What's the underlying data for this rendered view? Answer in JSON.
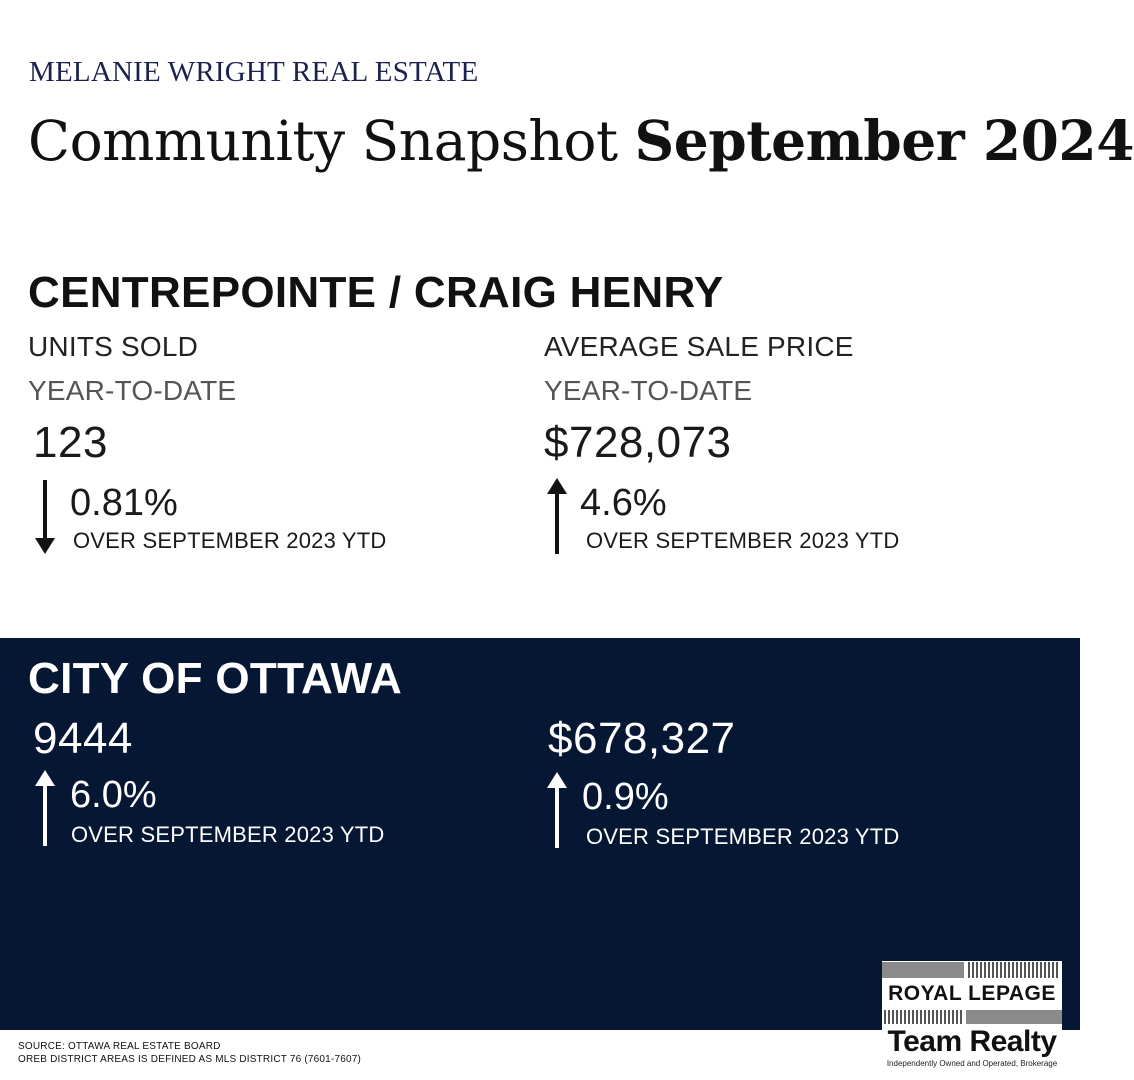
{
  "header": {
    "brand": "MELANIE WRIGHT REAL ESTATE",
    "title_regular": "Community Snapshot",
    "title_bold": "September 2024"
  },
  "community": {
    "heading": "CENTREPOINTE / CRAIG HENRY",
    "units": {
      "label": "UNITS SOLD",
      "period": "YEAR-TO-DATE",
      "value": "123",
      "change": "0.81%",
      "direction": "down",
      "comparison": "OVER SEPTEMBER 2023 YTD"
    },
    "price": {
      "label": "AVERAGE SALE PRICE",
      "period": "YEAR-TO-DATE",
      "value": "$728,073",
      "change": "4.6%",
      "direction": "up",
      "comparison": "OVER SEPTEMBER 2023 YTD"
    }
  },
  "city": {
    "heading": "CITY OF OTTAWA",
    "units": {
      "value": "9444",
      "change": "6.0%",
      "direction": "up",
      "comparison": "OVER SEPTEMBER 2023 YTD"
    },
    "price": {
      "value": "$678,327",
      "change": "0.9%",
      "direction": "up",
      "comparison": "OVER SEPTEMBER 2023 YTD"
    }
  },
  "footer": {
    "source": "SOURCE: OTTAWA REAL ESTATE BOARD",
    "note": "OREB DISTRICT AREAS IS DEFINED AS MLS DISTRICT 76 (7601-7607)"
  },
  "logo": {
    "line1": "ROYAL LEPAGE",
    "line2": "Team Realty",
    "tagline": "Independently Owned and Operated, Brokerage"
  },
  "colors": {
    "brand_navy": "#1c2150",
    "band_navy": "#061734"
  }
}
